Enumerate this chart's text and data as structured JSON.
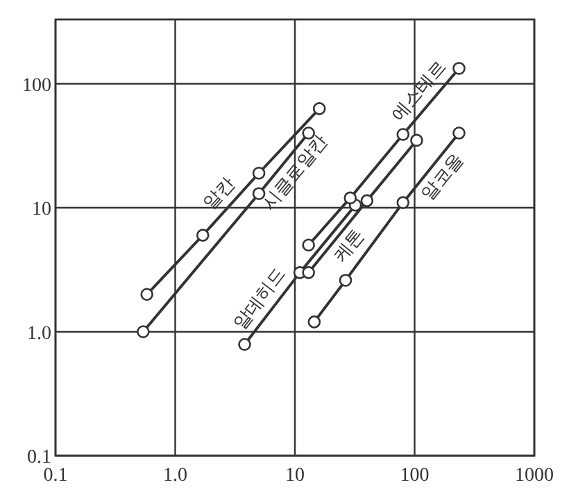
{
  "chart_data": {
    "type": "line",
    "log": "xy",
    "grid": true,
    "marker": "circle",
    "line_style": "solid",
    "xlim": [
      0.1,
      1000
    ],
    "ylim": [
      0.1,
      330
    ],
    "xticks": [
      0.1,
      {
        "value": 1,
        "label": "1.0"
      },
      10,
      100,
      1000
    ],
    "yticks": [
      0.1,
      {
        "value": 1,
        "label": "1.0"
      },
      10,
      100
    ],
    "series": [
      {
        "name": "알칸",
        "color": "#333333",
        "x": [
          0.58,
          1.7,
          5.0,
          16
        ],
        "values": [
          2.0,
          6.0,
          19,
          63
        ]
      },
      {
        "name": "시클로알칸",
        "color": "#333333",
        "x": [
          0.54,
          5.0,
          13
        ],
        "values": [
          1.0,
          13,
          40
        ]
      },
      {
        "name": "알데히드",
        "color": "#333333",
        "x": [
          3.8,
          11,
          32
        ],
        "values": [
          0.79,
          3.0,
          10.5
        ]
      },
      {
        "name": "에스테르",
        "color": "#333333",
        "x": [
          13,
          29,
          80,
          235
        ],
        "values": [
          5.0,
          12,
          39,
          133
        ]
      },
      {
        "name": "케톤",
        "color": "#333333",
        "x": [
          13,
          40,
          104
        ],
        "values": [
          3.0,
          11.4,
          35
        ]
      },
      {
        "name": "알코올",
        "color": "#333333",
        "x": [
          14.5,
          26.5,
          80,
          235
        ],
        "values": [
          1.2,
          2.6,
          11,
          40
        ]
      }
    ]
  }
}
